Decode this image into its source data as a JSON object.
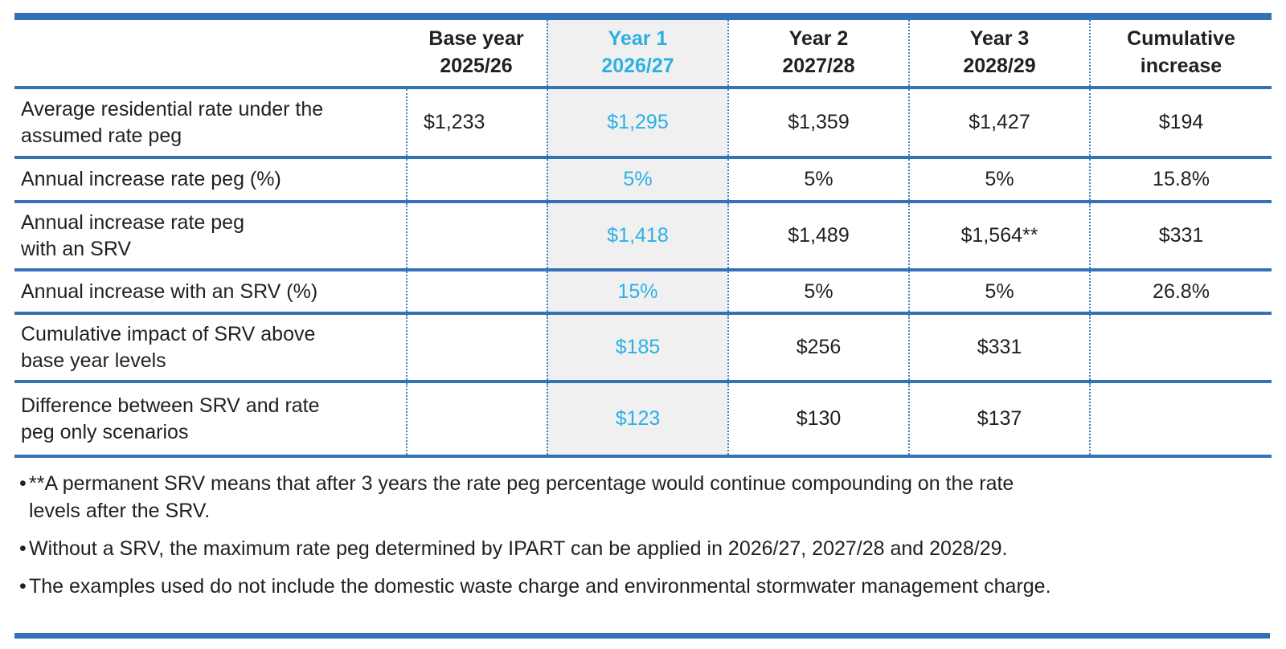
{
  "colors": {
    "rule_blue": "#3273b4",
    "dotted_blue": "#3f80c5",
    "highlight_cyan": "#2cb0e4",
    "highlight_column_bg": "#f0f0f1",
    "text": "#231f20"
  },
  "table": {
    "columns": [
      {
        "label": ""
      },
      {
        "label": "Base year\n2025/26"
      },
      {
        "label": "Year 1\n2026/27",
        "highlighted": true
      },
      {
        "label": "Year 2\n2027/28"
      },
      {
        "label": "Year 3\n2028/29"
      },
      {
        "label": "Cumulative\nincrease"
      }
    ],
    "rows": [
      {
        "label": "Average residential rate under the\nassumed rate peg",
        "values": [
          "$1,233",
          "$1,295",
          "$1,359",
          "$1,427",
          "$194"
        ]
      },
      {
        "label": "Annual increase rate peg (%)",
        "values": [
          "",
          "5%",
          "5%",
          "5%",
          "15.8%"
        ]
      },
      {
        "label": "Annual increase rate peg\nwith an SRV",
        "values": [
          "",
          "$1,418",
          "$1,489",
          "$1,564**",
          "$331"
        ]
      },
      {
        "label": "Annual increase with an SRV (%)",
        "values": [
          "",
          "15%",
          "5%",
          "5%",
          "26.8%"
        ]
      },
      {
        "label": "Cumulative impact of SRV above\nbase year levels",
        "values": [
          "",
          "$185",
          "$256",
          "$331",
          ""
        ]
      },
      {
        "label": "Difference between SRV and rate\npeg only scenarios",
        "values": [
          "",
          "$123",
          "$130",
          "$137",
          ""
        ]
      }
    ]
  },
  "footnotes": {
    "bullet_glyph": "•",
    "items": [
      "**A permanent SRV means that after 3 years the rate peg percentage would continue compounding on the rate\nlevels after the SRV.",
      "Without a SRV, the maximum rate peg determined by IPART can be applied in 2026/27, 2027/28 and 2028/29.",
      "The examples used do not include the domestic waste charge and environmental stormwater management charge."
    ]
  }
}
